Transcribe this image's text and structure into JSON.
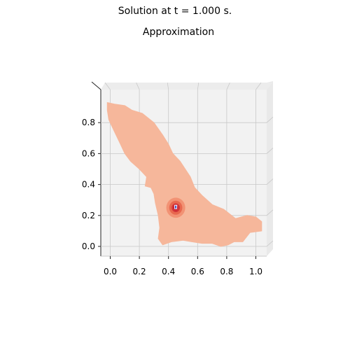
{
  "figure": {
    "suptitle": "Solution at t = 1.000 s.",
    "title": "Approximation"
  },
  "chart_data": {
    "type": "surface-3d",
    "title": "Approximation",
    "view": "top-down",
    "xlim": [
      -0.07,
      1.07
    ],
    "ylim": [
      -0.06,
      0.97
    ],
    "xticks": [
      0.0,
      0.2,
      0.4,
      0.6,
      0.8,
      1.0
    ],
    "yticks": [
      0.0,
      0.2,
      0.4,
      0.6,
      0.8
    ],
    "xtick_labels": [
      "0.0",
      "0.2",
      "0.4",
      "0.6",
      "0.8",
      "1.0"
    ],
    "ytick_labels": [
      "0.0",
      "0.2",
      "0.4",
      "0.6",
      "0.8"
    ],
    "grid": true,
    "colormap": "coolwarm",
    "base_color": "#f6b79b",
    "pane_color": "#f2f2f2",
    "domain_outline": [
      [
        -0.02,
        0.93
      ],
      [
        0.03,
        0.92
      ],
      [
        0.1,
        0.91
      ],
      [
        0.15,
        0.88
      ],
      [
        0.22,
        0.86
      ],
      [
        0.3,
        0.8
      ],
      [
        0.36,
        0.72
      ],
      [
        0.4,
        0.66
      ],
      [
        0.43,
        0.6
      ],
      [
        0.48,
        0.55
      ],
      [
        0.55,
        0.45
      ],
      [
        0.58,
        0.38
      ],
      [
        0.63,
        0.33
      ],
      [
        0.7,
        0.27
      ],
      [
        0.78,
        0.24
      ],
      [
        0.86,
        0.18
      ],
      [
        0.94,
        0.2
      ],
      [
        1.0,
        0.19
      ],
      [
        1.04,
        0.16
      ],
      [
        1.04,
        0.1
      ],
      [
        0.96,
        0.09
      ],
      [
        0.91,
        0.03
      ],
      [
        0.85,
        0.03
      ],
      [
        0.81,
        0.01
      ],
      [
        0.76,
        0.0
      ],
      [
        0.7,
        0.02
      ],
      [
        0.63,
        0.02
      ],
      [
        0.56,
        0.03
      ],
      [
        0.5,
        0.04
      ],
      [
        0.42,
        0.03
      ],
      [
        0.36,
        0.01
      ],
      [
        0.33,
        0.05
      ],
      [
        0.34,
        0.12
      ],
      [
        0.33,
        0.2
      ],
      [
        0.31,
        0.28
      ],
      [
        0.3,
        0.34
      ],
      [
        0.28,
        0.38
      ],
      [
        0.24,
        0.39
      ],
      [
        0.25,
        0.45
      ],
      [
        0.2,
        0.5
      ],
      [
        0.14,
        0.55
      ],
      [
        0.1,
        0.6
      ],
      [
        0.07,
        0.66
      ],
      [
        0.03,
        0.74
      ],
      [
        -0.01,
        0.82
      ],
      [
        -0.02,
        0.88
      ]
    ],
    "peak": {
      "x": 0.45,
      "y": 0.25,
      "rings": [
        {
          "radius": 0.065,
          "color": "#f29274"
        },
        {
          "radius": 0.045,
          "color": "#e8684f"
        },
        {
          "radius": 0.028,
          "color": "#d0343a"
        },
        {
          "radius": 0.014,
          "color": "#b40426"
        }
      ],
      "center_colors": [
        "#3b4cc0",
        "#ffffff"
      ]
    }
  }
}
